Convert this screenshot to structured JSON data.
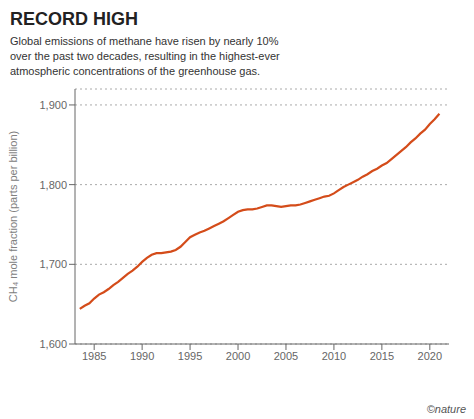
{
  "chart_data": {
    "type": "line",
    "title": "RECORD HIGH",
    "subtitle": "Global emissions of methane have risen by nearly 10%\nover the past two decades, resulting in the highest-ever\natmospheric concentrations of the greenhouse gas.",
    "ylabel": "CH₄ mole fraction (parts per billion)",
    "annotations": [
      "©nature"
    ],
    "x": [
      1983.5,
      1984,
      1984.5,
      1985,
      1985.5,
      1986,
      1986.5,
      1987,
      1987.5,
      1988,
      1988.5,
      1989,
      1989.5,
      1990,
      1990.5,
      1991,
      1991.5,
      1992,
      1992.5,
      1993,
      1993.5,
      1994,
      1994.5,
      1995,
      1995.5,
      1996,
      1996.5,
      1997,
      1997.5,
      1998,
      1998.5,
      1999,
      1999.5,
      2000,
      2000.5,
      2001,
      2001.5,
      2002,
      2002.5,
      2003,
      2003.5,
      2004,
      2004.5,
      2005,
      2005.5,
      2006,
      2006.5,
      2007,
      2007.5,
      2008,
      2008.5,
      2009,
      2009.5,
      2010,
      2010.5,
      2011,
      2011.5,
      2012,
      2012.5,
      2013,
      2013.5,
      2014,
      2014.5,
      2015,
      2015.5,
      2016,
      2016.5,
      2017,
      2017.5,
      2018,
      2018.5,
      2019,
      2019.5,
      2020,
      2020.5,
      2021
    ],
    "values": [
      1644,
      1648,
      1651,
      1657,
      1662,
      1665,
      1669,
      1674,
      1678,
      1683,
      1688,
      1692,
      1697,
      1703,
      1708,
      1712,
      1714,
      1714,
      1715,
      1716,
      1718,
      1722,
      1728,
      1734,
      1737,
      1740,
      1742,
      1745,
      1748,
      1751,
      1754,
      1758,
      1762,
      1766,
      1768,
      1769,
      1769,
      1770,
      1772,
      1774,
      1774,
      1773,
      1772,
      1773,
      1774,
      1774,
      1775,
      1777,
      1779,
      1781,
      1783,
      1785,
      1786,
      1789,
      1793,
      1797,
      1800,
      1803,
      1806,
      1810,
      1813,
      1817,
      1820,
      1824,
      1827,
      1832,
      1837,
      1842,
      1847,
      1853,
      1858,
      1864,
      1869,
      1876,
      1882,
      1889
    ],
    "color": "#d44c1a",
    "xlim": [
      1983,
      2022
    ],
    "xticks": [
      1985,
      1990,
      1995,
      2000,
      2005,
      2010,
      2015,
      2020
    ],
    "ylim": [
      1600,
      1920
    ],
    "yticks": [
      {
        "value": 1600,
        "label": "1,600"
      },
      {
        "value": 1700,
        "label": "1,700"
      },
      {
        "value": 1800,
        "label": "1,800"
      },
      {
        "value": 1900,
        "label": "1,900"
      }
    ],
    "grid": true
  }
}
